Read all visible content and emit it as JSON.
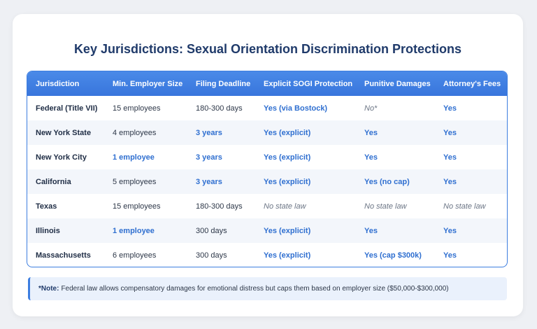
{
  "title": "Key Jurisdictions: Sexual Orientation Discrimination Protections",
  "table": {
    "header": [
      "Jurisdiction",
      "Min. Employer Size",
      "Filing Deadline",
      "Explicit SOGI Protection",
      "Punitive Damages",
      "Attorney's Fees"
    ],
    "rows": [
      [
        "Federal (Title VII)",
        "15 employees",
        "180-300 days",
        "Yes (via Bostock)",
        "No*",
        "Yes"
      ],
      [
        "New York State",
        "4 employees",
        "3 years",
        "Yes (explicit)",
        "Yes",
        "Yes"
      ],
      [
        "New York City",
        "1 employee",
        "3 years",
        "Yes (explicit)",
        "Yes",
        "Yes"
      ],
      [
        "California",
        "5 employees",
        "3 years",
        "Yes (explicit)",
        "Yes (no cap)",
        "Yes"
      ],
      [
        "Texas",
        "15 employees",
        "180-300 days",
        "No state law",
        "No state law",
        "No state law"
      ],
      [
        "Illinois",
        "1 employee",
        "300 days",
        "Yes (explicit)",
        "Yes",
        "Yes"
      ],
      [
        "Massachusetts",
        "6 employees",
        "300 days",
        "Yes (explicit)",
        "Yes (cap $300k)",
        "Yes"
      ]
    ]
  },
  "note": {
    "label": "*Note:",
    "text": "Federal law allows compensatory damages for emotional distress but caps them based on employer size ($50,000-$300,000)"
  }
}
